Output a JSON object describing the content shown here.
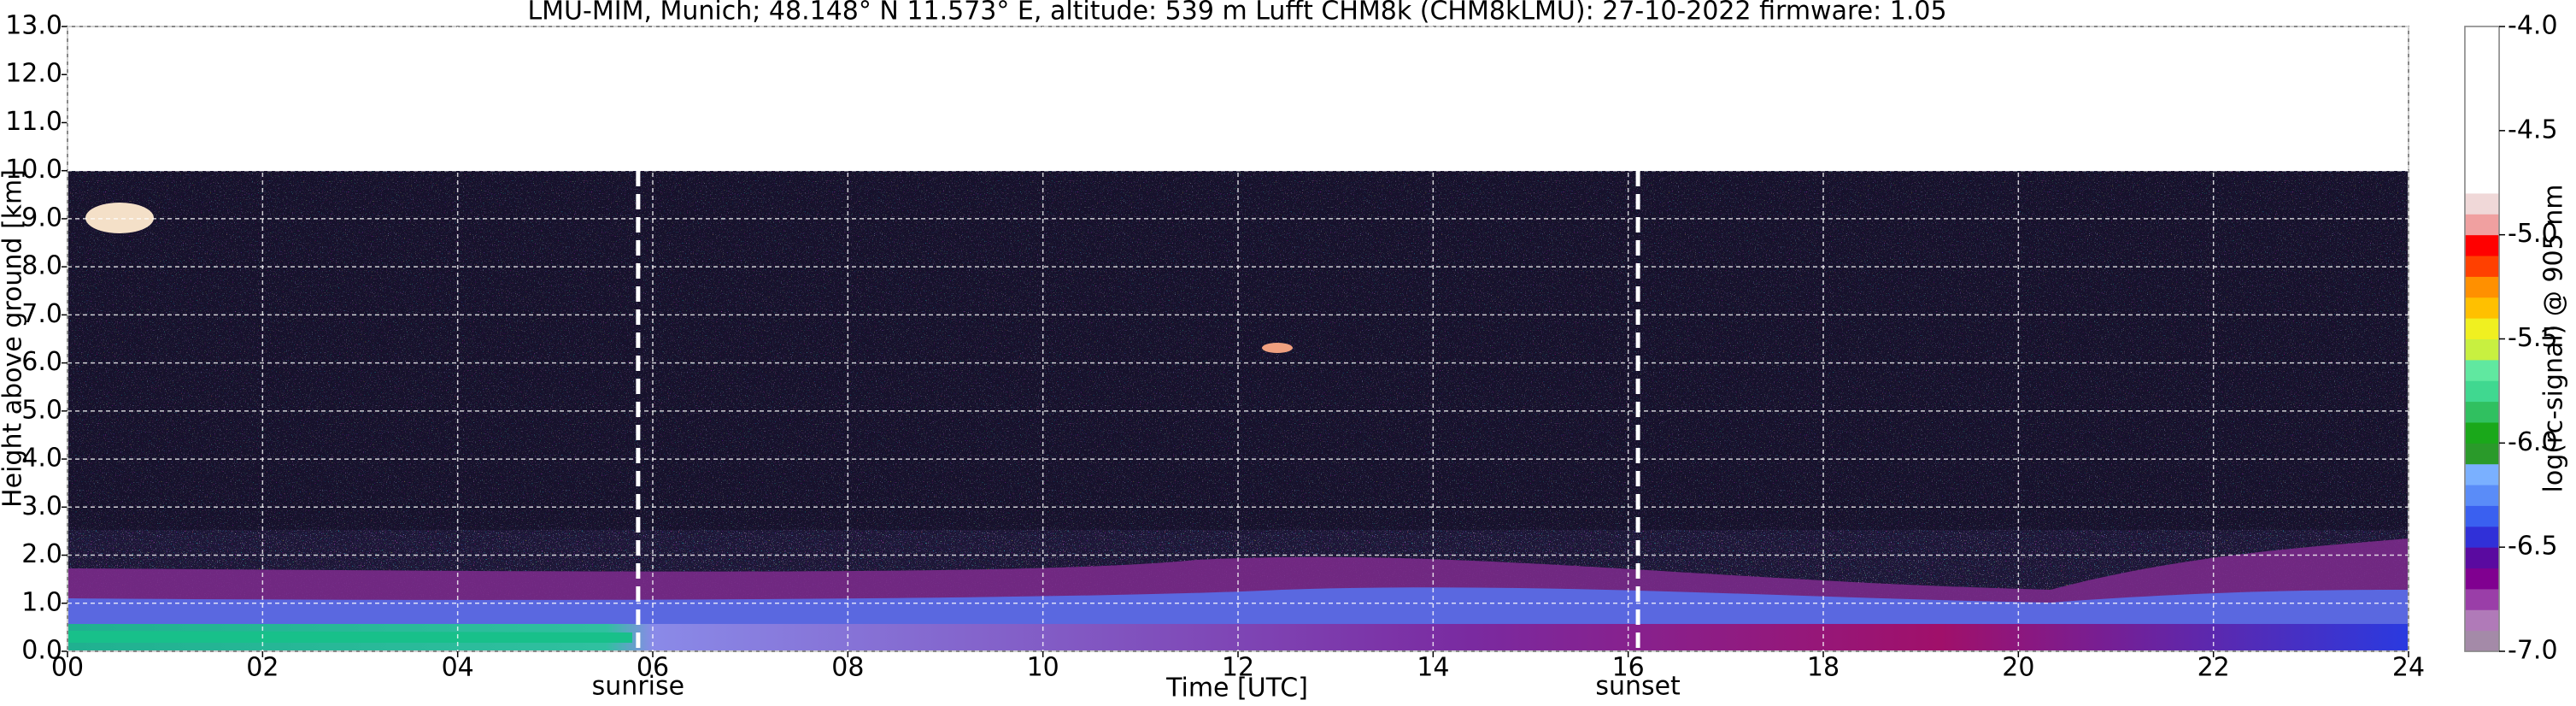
{
  "chart_data": {
    "type": "heatmap",
    "title": "LMU-MIM, Munich; 48.148° N 11.573° E, altitude: 539 m    Lufft CHM8k (CHM8kLMU): 27-10-2022    firmware: 1.05",
    "xlabel": "Time [UTC]",
    "ylabel": "Height above ground [km]",
    "xlim": [
      0,
      24
    ],
    "xticks": [
      {
        "value": 0,
        "label": "00"
      },
      {
        "value": 2,
        "label": "02"
      },
      {
        "value": 4,
        "label": "04"
      },
      {
        "value": 6,
        "label": "06"
      },
      {
        "value": 8,
        "label": "08"
      },
      10,
      12,
      14,
      16,
      18,
      20,
      22,
      24
    ],
    "ylim": [
      0,
      13
    ],
    "yticks": [
      {
        "value": 0,
        "label": "0.0"
      },
      {
        "value": 1,
        "label": "1.0"
      },
      {
        "value": 2,
        "label": "2.0"
      },
      {
        "value": 3,
        "label": "3.0"
      },
      {
        "value": 4,
        "label": "4.0"
      },
      {
        "value": 5,
        "label": "5.0"
      },
      {
        "value": 6,
        "label": "6.0"
      },
      {
        "value": 7,
        "label": "7.0"
      },
      {
        "value": 8,
        "label": "8.0"
      },
      {
        "value": 9,
        "label": "9.0"
      },
      {
        "value": 10,
        "label": "10.0"
      },
      {
        "value": 11,
        "label": "11.0"
      },
      {
        "value": 12,
        "label": "12.0"
      },
      {
        "value": 13,
        "label": "13.0"
      }
    ],
    "grid": true,
    "annotations": [
      {
        "text": "sunrise",
        "x": 5.85
      },
      {
        "text": "sunset",
        "x": 16.1
      }
    ],
    "colorbar": {
      "label": "log(rc-signal) @ 905 nm",
      "lim": [
        -7,
        -4
      ],
      "ticks": [
        {
          "value": -7,
          "label": "-7.0"
        },
        -6.5,
        {
          "value": -6,
          "label": "-6.0"
        },
        -5.5,
        {
          "value": -5,
          "label": "-5.0"
        },
        -4.5,
        {
          "value": -4,
          "label": "-4.0"
        }
      ],
      "colors": [
        "#a48aa8",
        "#b07ab8",
        "#9a3ea8",
        "#800090",
        "#5a0aa0",
        "#3030d8",
        "#3a60f0",
        "#5a8cf8",
        "#7ab0ff",
        "#2a9a2a",
        "#1aa81a",
        "#30c060",
        "#40d890",
        "#60e8a0",
        "#c8f040",
        "#f0f020",
        "#ffc000",
        "#ff9000",
        "#ff4000",
        "#ff0000",
        "#f0a0a0",
        "#f0d8d8",
        "#ffffff",
        "#ffffff",
        "#ffffff",
        "#ffffff",
        "#ffffff",
        "#ffffff",
        "#ffffff",
        "#ffffff"
      ]
    }
  }
}
